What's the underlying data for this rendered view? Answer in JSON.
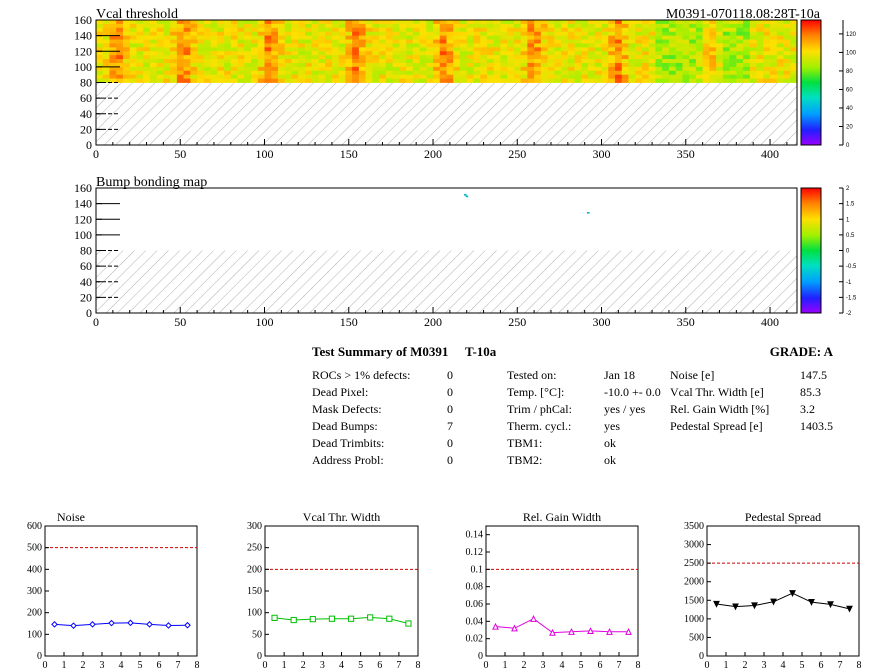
{
  "header": {
    "module_id": "M0391-070118.08:28T-10a"
  },
  "maps": [
    {
      "title": "Vcal threshold",
      "xlim": [
        0,
        416
      ],
      "ylim": [
        0,
        160
      ],
      "x_ticks": [
        "0",
        "50",
        "100",
        "150",
        "200",
        "250",
        "300",
        "350",
        "400"
      ],
      "y_ticks": [
        "0",
        "20",
        "40",
        "60",
        "80",
        "100",
        "120",
        "140",
        "160"
      ],
      "filled_rows": [
        80,
        160
      ],
      "z_range": [
        0,
        135
      ],
      "colorbar_ticks": [
        "0",
        "20",
        "40",
        "60",
        "80",
        "100",
        "120"
      ],
      "hot_columns": [
        13,
        52,
        103,
        155,
        207,
        260,
        310,
        365
      ],
      "cool_band": [
        330,
        390
      ]
    },
    {
      "title": "Bump bonding map",
      "xlim": [
        0,
        416
      ],
      "ylim": [
        0,
        160
      ],
      "x_ticks": [
        "0",
        "50",
        "100",
        "150",
        "200",
        "250",
        "300",
        "350",
        "400"
      ],
      "y_ticks": [
        "0",
        "20",
        "40",
        "60",
        "80",
        "100",
        "120",
        "140",
        "160"
      ],
      "filled_rows": [
        80,
        160
      ],
      "z_range": [
        -2,
        2
      ],
      "colorbar_ticks": [
        "-2",
        "-1.5",
        "-1",
        "-0.5",
        "0",
        "0.5",
        "1",
        "1.5",
        "2"
      ],
      "markers": [
        {
          "x": 219,
          "y": 151
        },
        {
          "x": 220,
          "y": 149
        },
        {
          "x": 292,
          "y": 128
        }
      ]
    }
  ],
  "summary": {
    "title": "Test Summary of M0391",
    "temp_tag": "T-10a",
    "grade": "GRADE:  A",
    "defects": [
      {
        "label": "ROCs > 1% defects:",
        "value": "0"
      },
      {
        "label": "Dead Pixel:",
        "value": "0"
      },
      {
        "label": "Mask Defects:",
        "value": "0"
      },
      {
        "label": "Dead Bumps:",
        "value": "7"
      },
      {
        "label": "Dead Trimbits:",
        "value": "0"
      },
      {
        "label": "Address Probl:",
        "value": "0"
      }
    ],
    "conditions": [
      {
        "label": "Tested on:",
        "value": "Jan 18"
      },
      {
        "label": "Temp. [°C]:",
        "value": "-10.0 +- 0.0"
      },
      {
        "label": "Trim / phCal:",
        "value": "yes / yes"
      },
      {
        "label": "Therm. cycl.:",
        "value": "yes"
      },
      {
        "label": "TBM1:",
        "value": "ok"
      },
      {
        "label": "TBM2:",
        "value": "ok"
      }
    ],
    "metrics": [
      {
        "label": "Noise [e]",
        "value": "147.5"
      },
      {
        "label": "Vcal Thr. Width [e]",
        "value": "85.3"
      },
      {
        "label": "Rel. Gain Width [%]",
        "value": "3.2"
      },
      {
        "label": "Pedestal Spread [e]",
        "value": "1403.5"
      }
    ]
  },
  "chart_data": [
    {
      "type": "line",
      "title": "Noise",
      "x": [
        0.5,
        1.5,
        2.5,
        3.5,
        4.5,
        5.5,
        6.5,
        7.5
      ],
      "values": [
        146,
        140,
        146,
        152,
        153,
        146,
        141,
        142
      ],
      "xlim": [
        0,
        8
      ],
      "ylim": [
        0,
        600
      ],
      "x_ticks": [
        "0",
        "1",
        "2",
        "3",
        "4",
        "5",
        "6",
        "7",
        "8"
      ],
      "y_ticks": [
        "0",
        "100",
        "200",
        "300",
        "400",
        "500",
        "600"
      ],
      "limit": 500,
      "color": "#0000ff",
      "marker": "diamond"
    },
    {
      "type": "line",
      "title": "Vcal Thr. Width",
      "x": [
        0.5,
        1.5,
        2.5,
        3.5,
        4.5,
        5.5,
        6.5,
        7.5
      ],
      "values": [
        88,
        83,
        85,
        86,
        86,
        89,
        86,
        75
      ],
      "xlim": [
        0,
        8
      ],
      "ylim": [
        0,
        300
      ],
      "x_ticks": [
        "0",
        "1",
        "2",
        "3",
        "4",
        "5",
        "6",
        "7",
        "8"
      ],
      "y_ticks": [
        "0",
        "50",
        "100",
        "150",
        "200",
        "250",
        "300"
      ],
      "limit": 200,
      "color": "#00c000",
      "marker": "square"
    },
    {
      "type": "line",
      "title": "Rel. Gain Width",
      "x": [
        0.5,
        1.5,
        2.5,
        3.5,
        4.5,
        5.5,
        6.5,
        7.5
      ],
      "values": [
        0.034,
        0.032,
        0.043,
        0.027,
        0.028,
        0.029,
        0.028,
        0.028
      ],
      "xlim": [
        0,
        8
      ],
      "ylim": [
        0,
        0.15
      ],
      "x_ticks": [
        "0",
        "1",
        "2",
        "3",
        "4",
        "5",
        "6",
        "7",
        "8"
      ],
      "y_ticks": [
        "0",
        "0.02",
        "0.04",
        "0.06",
        "0.08",
        "0.1",
        "0.12",
        "0.14"
      ],
      "limit": 0.1,
      "color": "#e000e0",
      "marker": "triangle"
    },
    {
      "type": "line",
      "title": "Pedestal Spread",
      "x": [
        0.5,
        1.5,
        2.5,
        3.5,
        4.5,
        5.5,
        6.5,
        7.5
      ],
      "values": [
        1400,
        1330,
        1360,
        1460,
        1690,
        1450,
        1390,
        1270
      ],
      "xlim": [
        0,
        8
      ],
      "ylim": [
        0,
        3500
      ],
      "x_ticks": [
        "0",
        "1",
        "2",
        "3",
        "4",
        "5",
        "6",
        "7",
        "8"
      ],
      "y_ticks": [
        "0",
        "500",
        "1000",
        "1500",
        "2000",
        "2500",
        "3000",
        "3500"
      ],
      "limit": 2500,
      "color": "#000000",
      "marker": "triangle-down"
    }
  ]
}
